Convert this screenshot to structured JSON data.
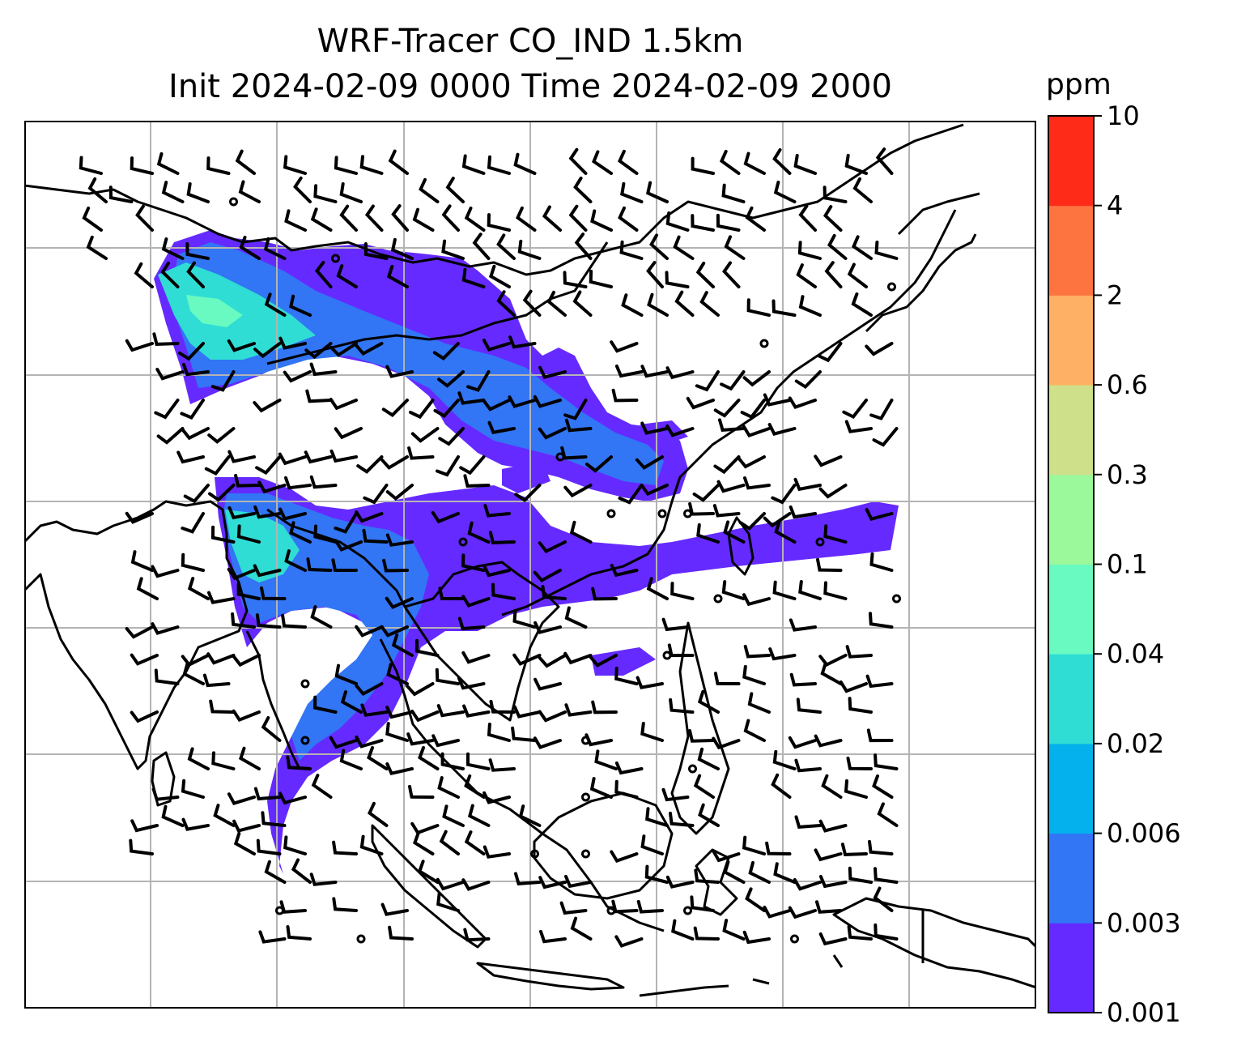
{
  "title": {
    "line1": "WRF-Tracer CO_IND 1.5km",
    "line2": "Init 2024-02-09 0000 Time 2024-02-09 2000"
  },
  "colorbar": {
    "unit": "ppm",
    "ticks": [
      "0.001",
      "0.003",
      "0.006",
      "0.02",
      "0.04",
      "0.1",
      "0.3",
      "0.6",
      "2",
      "4",
      "10"
    ],
    "colors": [
      "#652aff",
      "#3275f5",
      "#05b1ec",
      "#2fddd4",
      "#68fac0",
      "#9bf99b",
      "#cfe08a",
      "#feb164",
      "#fe7440",
      "#fe2b18"
    ]
  },
  "map": {
    "gridlines": true,
    "coastline_color": "#000000",
    "gridline_color": "#b4b4b4",
    "wind_barbs": "black"
  }
}
